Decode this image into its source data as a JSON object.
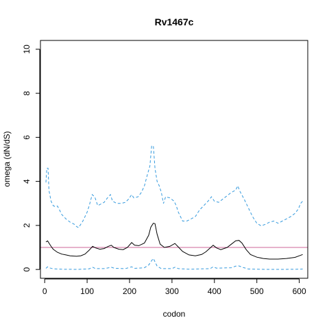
{
  "chart_data": {
    "type": "line",
    "title": "Rv1467c",
    "xlabel": "codon",
    "ylabel": "omega (dN/dS)",
    "xlim": [
      -10,
      620
    ],
    "ylim": [
      -0.4,
      10.4
    ],
    "x_ticks": [
      0,
      100,
      200,
      300,
      400,
      500,
      600
    ],
    "y_ticks": [
      0,
      2,
      4,
      6,
      8,
      10
    ],
    "grid": false,
    "legend": "none",
    "reference_line": {
      "y": 1,
      "color": "#cc6699"
    },
    "series": [
      {
        "style": "solid",
        "color": "#000000",
        "points": [
          [
            3,
            1.25
          ],
          [
            7,
            1.3
          ],
          [
            10,
            1.2
          ],
          [
            15,
            1.05
          ],
          [
            20,
            0.92
          ],
          [
            30,
            0.78
          ],
          [
            40,
            0.7
          ],
          [
            50,
            0.66
          ],
          [
            60,
            0.62
          ],
          [
            75,
            0.6
          ],
          [
            85,
            0.62
          ],
          [
            95,
            0.7
          ],
          [
            105,
            0.88
          ],
          [
            113,
            1.05
          ],
          [
            120,
            0.98
          ],
          [
            130,
            0.92
          ],
          [
            140,
            0.95
          ],
          [
            150,
            1.05
          ],
          [
            157,
            1.1
          ],
          [
            163,
            1.0
          ],
          [
            175,
            0.92
          ],
          [
            185,
            0.9
          ],
          [
            195,
            1.0
          ],
          [
            205,
            1.22
          ],
          [
            212,
            1.1
          ],
          [
            222,
            1.08
          ],
          [
            235,
            1.2
          ],
          [
            245,
            1.55
          ],
          [
            250,
            1.92
          ],
          [
            256,
            2.1
          ],
          [
            260,
            2.08
          ],
          [
            265,
            1.6
          ],
          [
            272,
            1.15
          ],
          [
            282,
            1.0
          ],
          [
            295,
            1.05
          ],
          [
            307,
            1.18
          ],
          [
            315,
            1.02
          ],
          [
            325,
            0.82
          ],
          [
            340,
            0.66
          ],
          [
            355,
            0.62
          ],
          [
            370,
            0.68
          ],
          [
            380,
            0.8
          ],
          [
            390,
            0.98
          ],
          [
            397,
            1.1
          ],
          [
            405,
            0.98
          ],
          [
            415,
            0.9
          ],
          [
            430,
            1.0
          ],
          [
            440,
            1.15
          ],
          [
            450,
            1.3
          ],
          [
            458,
            1.32
          ],
          [
            465,
            1.2
          ],
          [
            475,
            0.9
          ],
          [
            485,
            0.68
          ],
          [
            500,
            0.56
          ],
          [
            515,
            0.5
          ],
          [
            530,
            0.47
          ],
          [
            550,
            0.47
          ],
          [
            570,
            0.5
          ],
          [
            590,
            0.55
          ],
          [
            600,
            0.62
          ],
          [
            608,
            0.68
          ]
        ]
      },
      {
        "style": "dashed",
        "color": "#3399dd",
        "points": [
          [
            3,
            3.95
          ],
          [
            5,
            4.6
          ],
          [
            8,
            4.6
          ],
          [
            10,
            3.6
          ],
          [
            15,
            3.1
          ],
          [
            20,
            2.9
          ],
          [
            25,
            2.85
          ],
          [
            30,
            2.88
          ],
          [
            35,
            2.7
          ],
          [
            40,
            2.5
          ],
          [
            50,
            2.3
          ],
          [
            60,
            2.15
          ],
          [
            70,
            2.05
          ],
          [
            75,
            1.95
          ],
          [
            80,
            1.9
          ],
          [
            85,
            2.05
          ],
          [
            90,
            2.2
          ],
          [
            100,
            2.6
          ],
          [
            105,
            2.9
          ],
          [
            112,
            3.4
          ],
          [
            118,
            3.3
          ],
          [
            125,
            2.9
          ],
          [
            130,
            2.95
          ],
          [
            140,
            3.05
          ],
          [
            148,
            3.25
          ],
          [
            155,
            3.4
          ],
          [
            160,
            3.1
          ],
          [
            170,
            3.0
          ],
          [
            180,
            3.0
          ],
          [
            190,
            3.05
          ],
          [
            198,
            3.2
          ],
          [
            205,
            3.4
          ],
          [
            210,
            3.25
          ],
          [
            220,
            3.3
          ],
          [
            228,
            3.5
          ],
          [
            235,
            3.8
          ],
          [
            242,
            4.3
          ],
          [
            248,
            4.7
          ],
          [
            252,
            5.6
          ],
          [
            256,
            5.62
          ],
          [
            260,
            4.6
          ],
          [
            265,
            4.0
          ],
          [
            270,
            3.8
          ],
          [
            275,
            3.5
          ],
          [
            280,
            3.0
          ],
          [
            285,
            3.3
          ],
          [
            295,
            3.25
          ],
          [
            305,
            3.1
          ],
          [
            310,
            2.9
          ],
          [
            315,
            2.6
          ],
          [
            320,
            2.4
          ],
          [
            325,
            2.2
          ],
          [
            335,
            2.2
          ],
          [
            345,
            2.3
          ],
          [
            355,
            2.4
          ],
          [
            365,
            2.7
          ],
          [
            375,
            2.9
          ],
          [
            385,
            3.1
          ],
          [
            393,
            3.3
          ],
          [
            400,
            3.1
          ],
          [
            410,
            3.05
          ],
          [
            420,
            3.2
          ],
          [
            430,
            3.35
          ],
          [
            440,
            3.5
          ],
          [
            450,
            3.6
          ],
          [
            455,
            3.8
          ],
          [
            460,
            3.55
          ],
          [
            470,
            3.2
          ],
          [
            480,
            2.8
          ],
          [
            490,
            2.4
          ],
          [
            500,
            2.1
          ],
          [
            510,
            1.98
          ],
          [
            520,
            2.05
          ],
          [
            530,
            2.15
          ],
          [
            540,
            2.2
          ],
          [
            550,
            2.1
          ],
          [
            560,
            2.2
          ],
          [
            570,
            2.3
          ],
          [
            580,
            2.4
          ],
          [
            590,
            2.55
          ],
          [
            598,
            2.75
          ],
          [
            603,
            3.0
          ],
          [
            608,
            3.1
          ]
        ]
      },
      {
        "style": "dashed",
        "color": "#3399dd",
        "points": [
          [
            3,
            0.05
          ],
          [
            7,
            0.12
          ],
          [
            10,
            0.08
          ],
          [
            20,
            0.03
          ],
          [
            40,
            0.01
          ],
          [
            80,
            0.005
          ],
          [
            105,
            0.03
          ],
          [
            113,
            0.1
          ],
          [
            120,
            0.04
          ],
          [
            140,
            0.04
          ],
          [
            157,
            0.1
          ],
          [
            165,
            0.05
          ],
          [
            190,
            0.04
          ],
          [
            205,
            0.12
          ],
          [
            212,
            0.05
          ],
          [
            235,
            0.08
          ],
          [
            245,
            0.2
          ],
          [
            252,
            0.4
          ],
          [
            256,
            0.5
          ],
          [
            260,
            0.35
          ],
          [
            265,
            0.15
          ],
          [
            275,
            0.04
          ],
          [
            300,
            0.04
          ],
          [
            307,
            0.1
          ],
          [
            315,
            0.04
          ],
          [
            340,
            0.01
          ],
          [
            390,
            0.04
          ],
          [
            397,
            0.12
          ],
          [
            405,
            0.06
          ],
          [
            440,
            0.08
          ],
          [
            450,
            0.15
          ],
          [
            458,
            0.16
          ],
          [
            466,
            0.1
          ],
          [
            480,
            0.02
          ],
          [
            520,
            0.005
          ],
          [
            560,
            0.005
          ],
          [
            600,
            0.01
          ],
          [
            608,
            0.02
          ]
        ]
      }
    ]
  }
}
